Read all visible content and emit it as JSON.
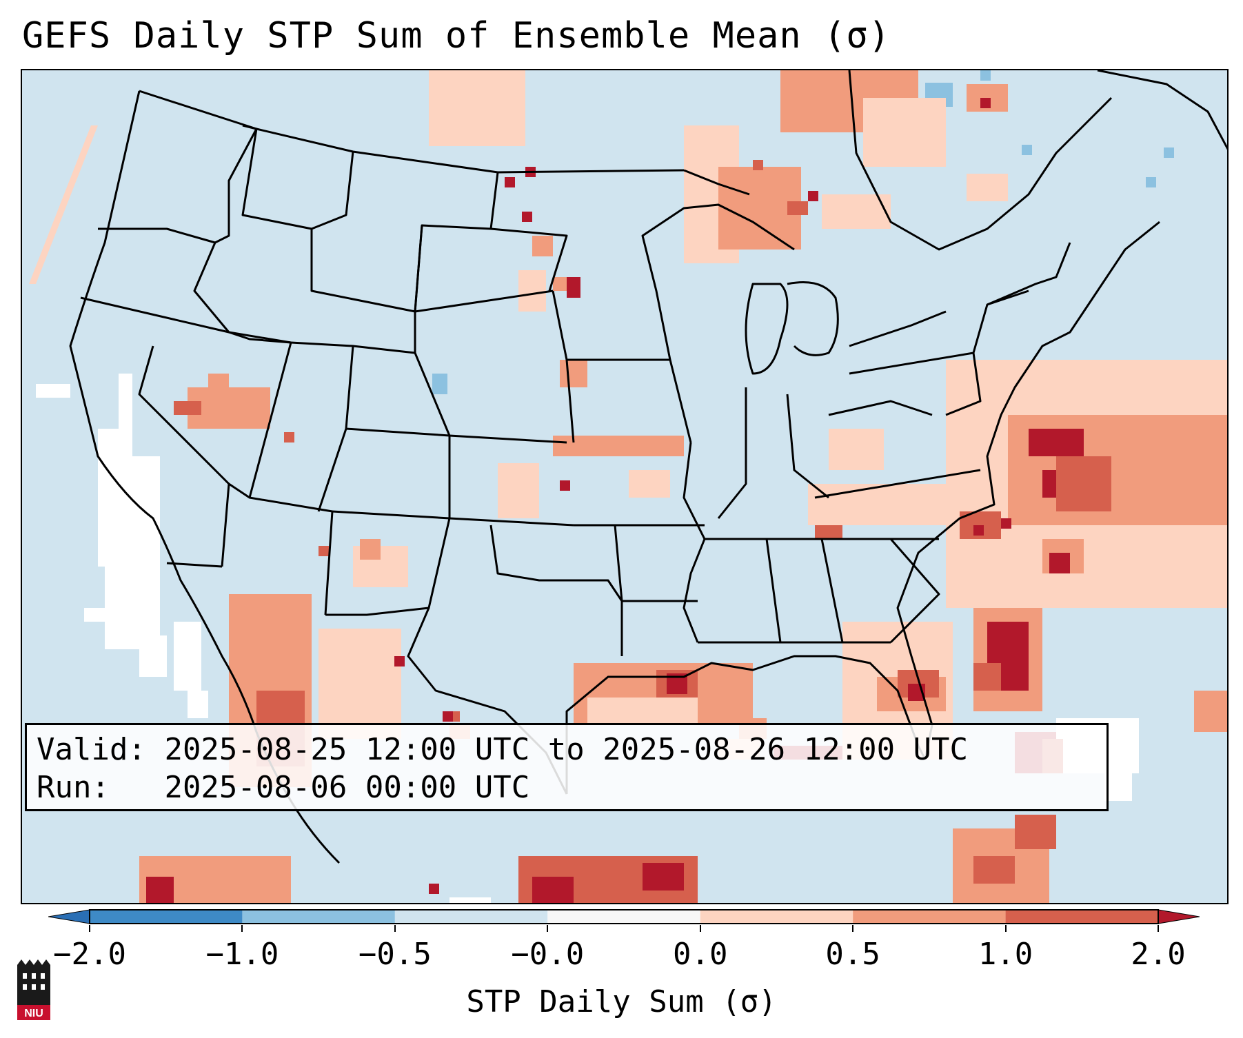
{
  "title": "GEFS Daily STP Sum of Ensemble Mean (σ)",
  "info": {
    "valid_label": "Valid:",
    "valid_value": "2025-08-25 12:00 UTC to 2025-08-26 12:00 UTC",
    "run_label": "Run:",
    "run_value": "2025-08-06 00:00 UTC"
  },
  "colorbar": {
    "label": "STP Daily Sum (σ)",
    "ticks": [
      "−2.0",
      "−1.0",
      "−0.5",
      "−0.0",
      "0.0",
      "0.5",
      "1.0",
      "2.0"
    ],
    "bins": [
      {
        "range": "< -2.0",
        "color": "#2a6fb5"
      },
      {
        "range": "-2.0 to -1.0",
        "color": "#3e8ac6"
      },
      {
        "range": "-1.0 to -0.5",
        "color": "#8cc1e0"
      },
      {
        "range": "-0.5 to -0.0",
        "color": "#d0e4ef"
      },
      {
        "range": "-0.0 to 0.0",
        "color": "#f7f7f7"
      },
      {
        "range": "0.0 to 0.5",
        "color": "#fdd4c1"
      },
      {
        "range": "0.5 to 1.0",
        "color": "#f19c7d"
      },
      {
        "range": "1.0 to 2.0",
        "color": "#d6604d"
      },
      {
        "range": "> 2.0",
        "color": "#b2182b"
      }
    ]
  },
  "logo": {
    "text": "NIU"
  },
  "colors": {
    "background_field": "#d0e4ef",
    "low_positive": "#fdd4c1",
    "moderate_positive": "#f19c7d",
    "high_positive": "#d6604d",
    "extreme_positive": "#b2182b",
    "negative": "#8cc1e0",
    "near_zero": "#ffffff"
  }
}
